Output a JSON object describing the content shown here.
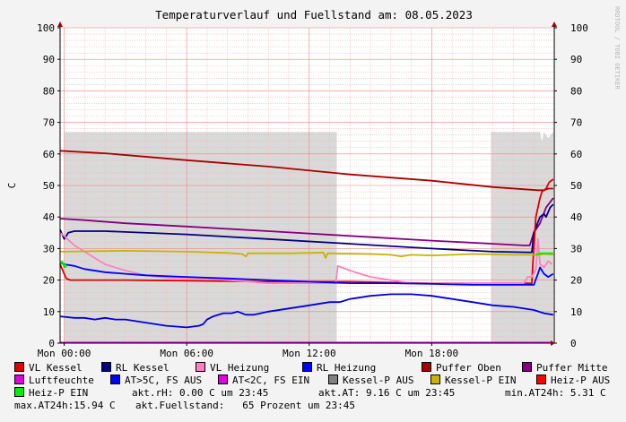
{
  "chart_data": {
    "type": "line",
    "title": "Temperaturverlauf und Fuellstand am: 08.05.2023",
    "ylabel": "C",
    "watermark": "RRDTOOL / TOBI OETIKER",
    "ylim": [
      0,
      100
    ],
    "yticks": [
      "0",
      "10",
      "20",
      "30",
      "40",
      "50",
      "60",
      "70",
      "80",
      "90",
      "100"
    ],
    "xlim": [
      -0.2,
      24
    ],
    "xticks": [
      {
        "x": 0,
        "label": "Mon 00:00"
      },
      {
        "x": 6,
        "label": "Mon 06:00"
      },
      {
        "x": 12,
        "label": "Mon 12:00"
      },
      {
        "x": 18,
        "label": "Mon 18:00"
      }
    ],
    "grid": true,
    "fill_level": {
      "name": "Fuellstand",
      "color": "#d9d9d9",
      "points": [
        [
          -0.2,
          0
        ],
        [
          0,
          0
        ],
        [
          0,
          67
        ],
        [
          13.35,
          67
        ],
        [
          13.35,
          0
        ],
        [
          20.9,
          0
        ],
        [
          20.9,
          67
        ],
        [
          23.3,
          67
        ],
        [
          23.4,
          64
        ],
        [
          23.5,
          67
        ],
        [
          23.7,
          65
        ],
        [
          23.95,
          67
        ],
        [
          23.95,
          0
        ]
      ]
    },
    "series": [
      {
        "name": "Puffer Oben",
        "color": "#a80000",
        "points": [
          [
            -0.2,
            61
          ],
          [
            2,
            60.2
          ],
          [
            6,
            58
          ],
          [
            10,
            56
          ],
          [
            14,
            53.5
          ],
          [
            18,
            51.5
          ],
          [
            21,
            49.5
          ],
          [
            23.2,
            48.5
          ],
          [
            23.5,
            48.5
          ],
          [
            23.7,
            49
          ],
          [
            23.95,
            49
          ]
        ]
      },
      {
        "name": "Puffer Mitte",
        "color": "#800080",
        "points": [
          [
            -0.2,
            39.5
          ],
          [
            1,
            39
          ],
          [
            3,
            38
          ],
          [
            6,
            37
          ],
          [
            10,
            35.5
          ],
          [
            14,
            34
          ],
          [
            18,
            32.5
          ],
          [
            21,
            31.5
          ],
          [
            22.5,
            31
          ],
          [
            22.8,
            31
          ],
          [
            23,
            35
          ],
          [
            23.3,
            38
          ],
          [
            23.6,
            43
          ],
          [
            23.95,
            46
          ]
        ]
      },
      {
        "name": "RL Kessel",
        "color": "#000080",
        "points": [
          [
            -0.2,
            36
          ],
          [
            0,
            33
          ],
          [
            0.2,
            35
          ],
          [
            0.5,
            35.5
          ],
          [
            2,
            35.5
          ],
          [
            6,
            34.5
          ],
          [
            10,
            33
          ],
          [
            14,
            31.5
          ],
          [
            18,
            30
          ],
          [
            21,
            29
          ],
          [
            22.7,
            28.8
          ],
          [
            22.9,
            28.8
          ],
          [
            23,
            35
          ],
          [
            23.3,
            40
          ],
          [
            23.5,
            41
          ],
          [
            23.6,
            40
          ],
          [
            23.8,
            43
          ],
          [
            23.95,
            44
          ]
        ]
      },
      {
        "name": "VL Kessel",
        "color": "#e00000",
        "points": [
          [
            -0.2,
            25
          ],
          [
            0,
            22
          ],
          [
            0.1,
            20.5
          ],
          [
            0.3,
            20
          ],
          [
            3,
            20
          ],
          [
            6,
            19.8
          ],
          [
            10,
            19.5
          ],
          [
            14,
            19.5
          ],
          [
            18,
            19
          ],
          [
            21,
            19
          ],
          [
            22.9,
            19
          ],
          [
            22.95,
            25
          ],
          [
            23.1,
            40
          ],
          [
            23.3,
            46
          ],
          [
            23.4,
            48
          ],
          [
            23.6,
            49
          ],
          [
            23.75,
            51
          ],
          [
            23.95,
            52
          ]
        ]
      },
      {
        "name": "VL Heizung",
        "color": "#ff80c0",
        "points": [
          [
            -0.2,
            35
          ],
          [
            0,
            34
          ],
          [
            0.5,
            31
          ],
          [
            1,
            29
          ],
          [
            1.5,
            27
          ],
          [
            2,
            25
          ],
          [
            3,
            23
          ],
          [
            4,
            21.5
          ],
          [
            5,
            20.8
          ],
          [
            7,
            20.5
          ],
          [
            9,
            19.5
          ],
          [
            10,
            19
          ],
          [
            12,
            19
          ],
          [
            13.3,
            19
          ],
          [
            13.4,
            24.5
          ],
          [
            13.6,
            24
          ],
          [
            14,
            23
          ],
          [
            14.5,
            22
          ],
          [
            15,
            21
          ],
          [
            16,
            20
          ],
          [
            17,
            19
          ],
          [
            20,
            19
          ],
          [
            22.5,
            19
          ],
          [
            22.7,
            21
          ],
          [
            22.9,
            21
          ],
          [
            23.1,
            23.5
          ],
          [
            23.2,
            33
          ],
          [
            23.3,
            25
          ],
          [
            23.5,
            24
          ],
          [
            23.7,
            26
          ],
          [
            23.9,
            25
          ]
        ]
      },
      {
        "name": "RL Heizung",
        "color": "#0000ff",
        "points": [
          [
            -0.2,
            25.5
          ],
          [
            0,
            25
          ],
          [
            0.5,
            24.5
          ],
          [
            1,
            23.5
          ],
          [
            2,
            22.5
          ],
          [
            3,
            22
          ],
          [
            4,
            21.5
          ],
          [
            6,
            21
          ],
          [
            8,
            20.5
          ],
          [
            10,
            20
          ],
          [
            12,
            19.5
          ],
          [
            14,
            19
          ],
          [
            16,
            19
          ],
          [
            18,
            18.8
          ],
          [
            20,
            18.5
          ],
          [
            22.8,
            18.5
          ],
          [
            23,
            18.5
          ],
          [
            23.2,
            22
          ],
          [
            23.3,
            24
          ],
          [
            23.5,
            22
          ],
          [
            23.7,
            21
          ],
          [
            23.95,
            22
          ]
        ]
      },
      {
        "name": "Kessel-P EIN",
        "color": "#c8b400",
        "points": [
          [
            -0.2,
            29
          ],
          [
            3,
            29.3
          ],
          [
            6,
            29
          ],
          [
            8,
            28.6
          ],
          [
            8.7,
            28.3
          ],
          [
            8.9,
            27.5
          ],
          [
            9,
            28.5
          ],
          [
            11,
            28.5
          ],
          [
            12.7,
            28.7
          ],
          [
            12.8,
            27
          ],
          [
            12.9,
            28.5
          ],
          [
            15,
            28.3
          ],
          [
            16,
            28
          ],
          [
            16.5,
            27.5
          ],
          [
            17,
            28
          ],
          [
            18,
            27.8
          ],
          [
            19,
            28
          ],
          [
            20,
            28.3
          ],
          [
            22,
            28
          ],
          [
            23,
            28
          ],
          [
            23.3,
            28
          ],
          [
            23.5,
            28.3
          ],
          [
            23.95,
            28
          ]
        ]
      },
      {
        "name": "Heiz-P EIN",
        "color": "#00ee00",
        "points": [
          [
            -0.2,
            25
          ],
          [
            -0.1,
            26
          ],
          [
            0,
            24
          ],
          [
            0.05,
            25
          ],
          [
            0.1,
            24
          ]
        ]
      },
      {
        "name": "Heiz-P EIN",
        "color": "#00ee00",
        "points": [
          [
            23.1,
            28
          ],
          [
            23.3,
            28.5
          ],
          [
            23.95,
            28.5
          ]
        ]
      },
      {
        "name": "AT>5C, FS AUS",
        "color": "#0000dd",
        "points": [
          [
            -0.2,
            8.5
          ],
          [
            0.5,
            8
          ],
          [
            1,
            8
          ],
          [
            1.5,
            7.5
          ],
          [
            2,
            8
          ],
          [
            2.5,
            7.5
          ],
          [
            3,
            7.5
          ],
          [
            3.5,
            7
          ],
          [
            4,
            6.5
          ],
          [
            5,
            5.5
          ],
          [
            6,
            5
          ],
          [
            6.6,
            5.5
          ],
          [
            6.8,
            6
          ],
          [
            7,
            7.5
          ],
          [
            7.3,
            8.5
          ],
          [
            7.8,
            9.5
          ],
          [
            8.2,
            9.5
          ],
          [
            8.5,
            10
          ],
          [
            8.7,
            9.5
          ],
          [
            8.9,
            9
          ],
          [
            9.3,
            9
          ],
          [
            10,
            10
          ],
          [
            11,
            11
          ],
          [
            12,
            12
          ],
          [
            13,
            13
          ],
          [
            13.5,
            13
          ],
          [
            14,
            14
          ],
          [
            15,
            15
          ],
          [
            16,
            15.5
          ],
          [
            17,
            15.5
          ],
          [
            18,
            15
          ],
          [
            19,
            14
          ],
          [
            20,
            13
          ],
          [
            21,
            12
          ],
          [
            22,
            11.5
          ],
          [
            23,
            10.5
          ],
          [
            23.5,
            9.5
          ],
          [
            23.95,
            9
          ]
        ]
      },
      {
        "name": "Luftfeuchte",
        "color": "#e000e0",
        "points": [
          [
            -0.2,
            0.2
          ],
          [
            23.95,
            0.2
          ]
        ]
      }
    ]
  },
  "legend": {
    "rows": [
      [
        {
          "label": "VL Kessel",
          "color": "#e00000"
        },
        {
          "label": "RL Kessel",
          "color": "#000080"
        },
        {
          "label": "VL Heizung",
          "color": "#ff80c0"
        },
        {
          "label": "RL Heizung",
          "color": "#0000ff"
        },
        {
          "label": "Puffer Oben",
          "color": "#a80000"
        },
        {
          "label": "Puffer Mitte",
          "color": "#800080"
        }
      ],
      [
        {
          "label": "Luftfeuchte",
          "color": "#e000e0"
        },
        {
          "label": "AT>5C, FS AUS",
          "color": "#0000ff"
        },
        {
          "label": "AT<2C, FS EIN",
          "color": "#e000e0"
        },
        {
          "label": "Kessel-P AUS",
          "color": "#808080"
        },
        {
          "label": "Kessel-P EIN",
          "color": "#c8b400"
        },
        {
          "label": "Heiz-P AUS",
          "color": "#ff0000"
        }
      ],
      [
        {
          "label": "Heiz-P EIN",
          "color": "#00ee00"
        }
      ]
    ],
    "info": {
      "rh": "akt.rH: 0.00 C um 23:45",
      "at": "akt.AT: 9.16 C um 23:45",
      "min_at": "min.AT24h: 5.31 C",
      "max_at": "max.AT24h:15.94 C",
      "fuellstand": "akt.Fuellstand:   65 Prozent um 23:45"
    }
  }
}
